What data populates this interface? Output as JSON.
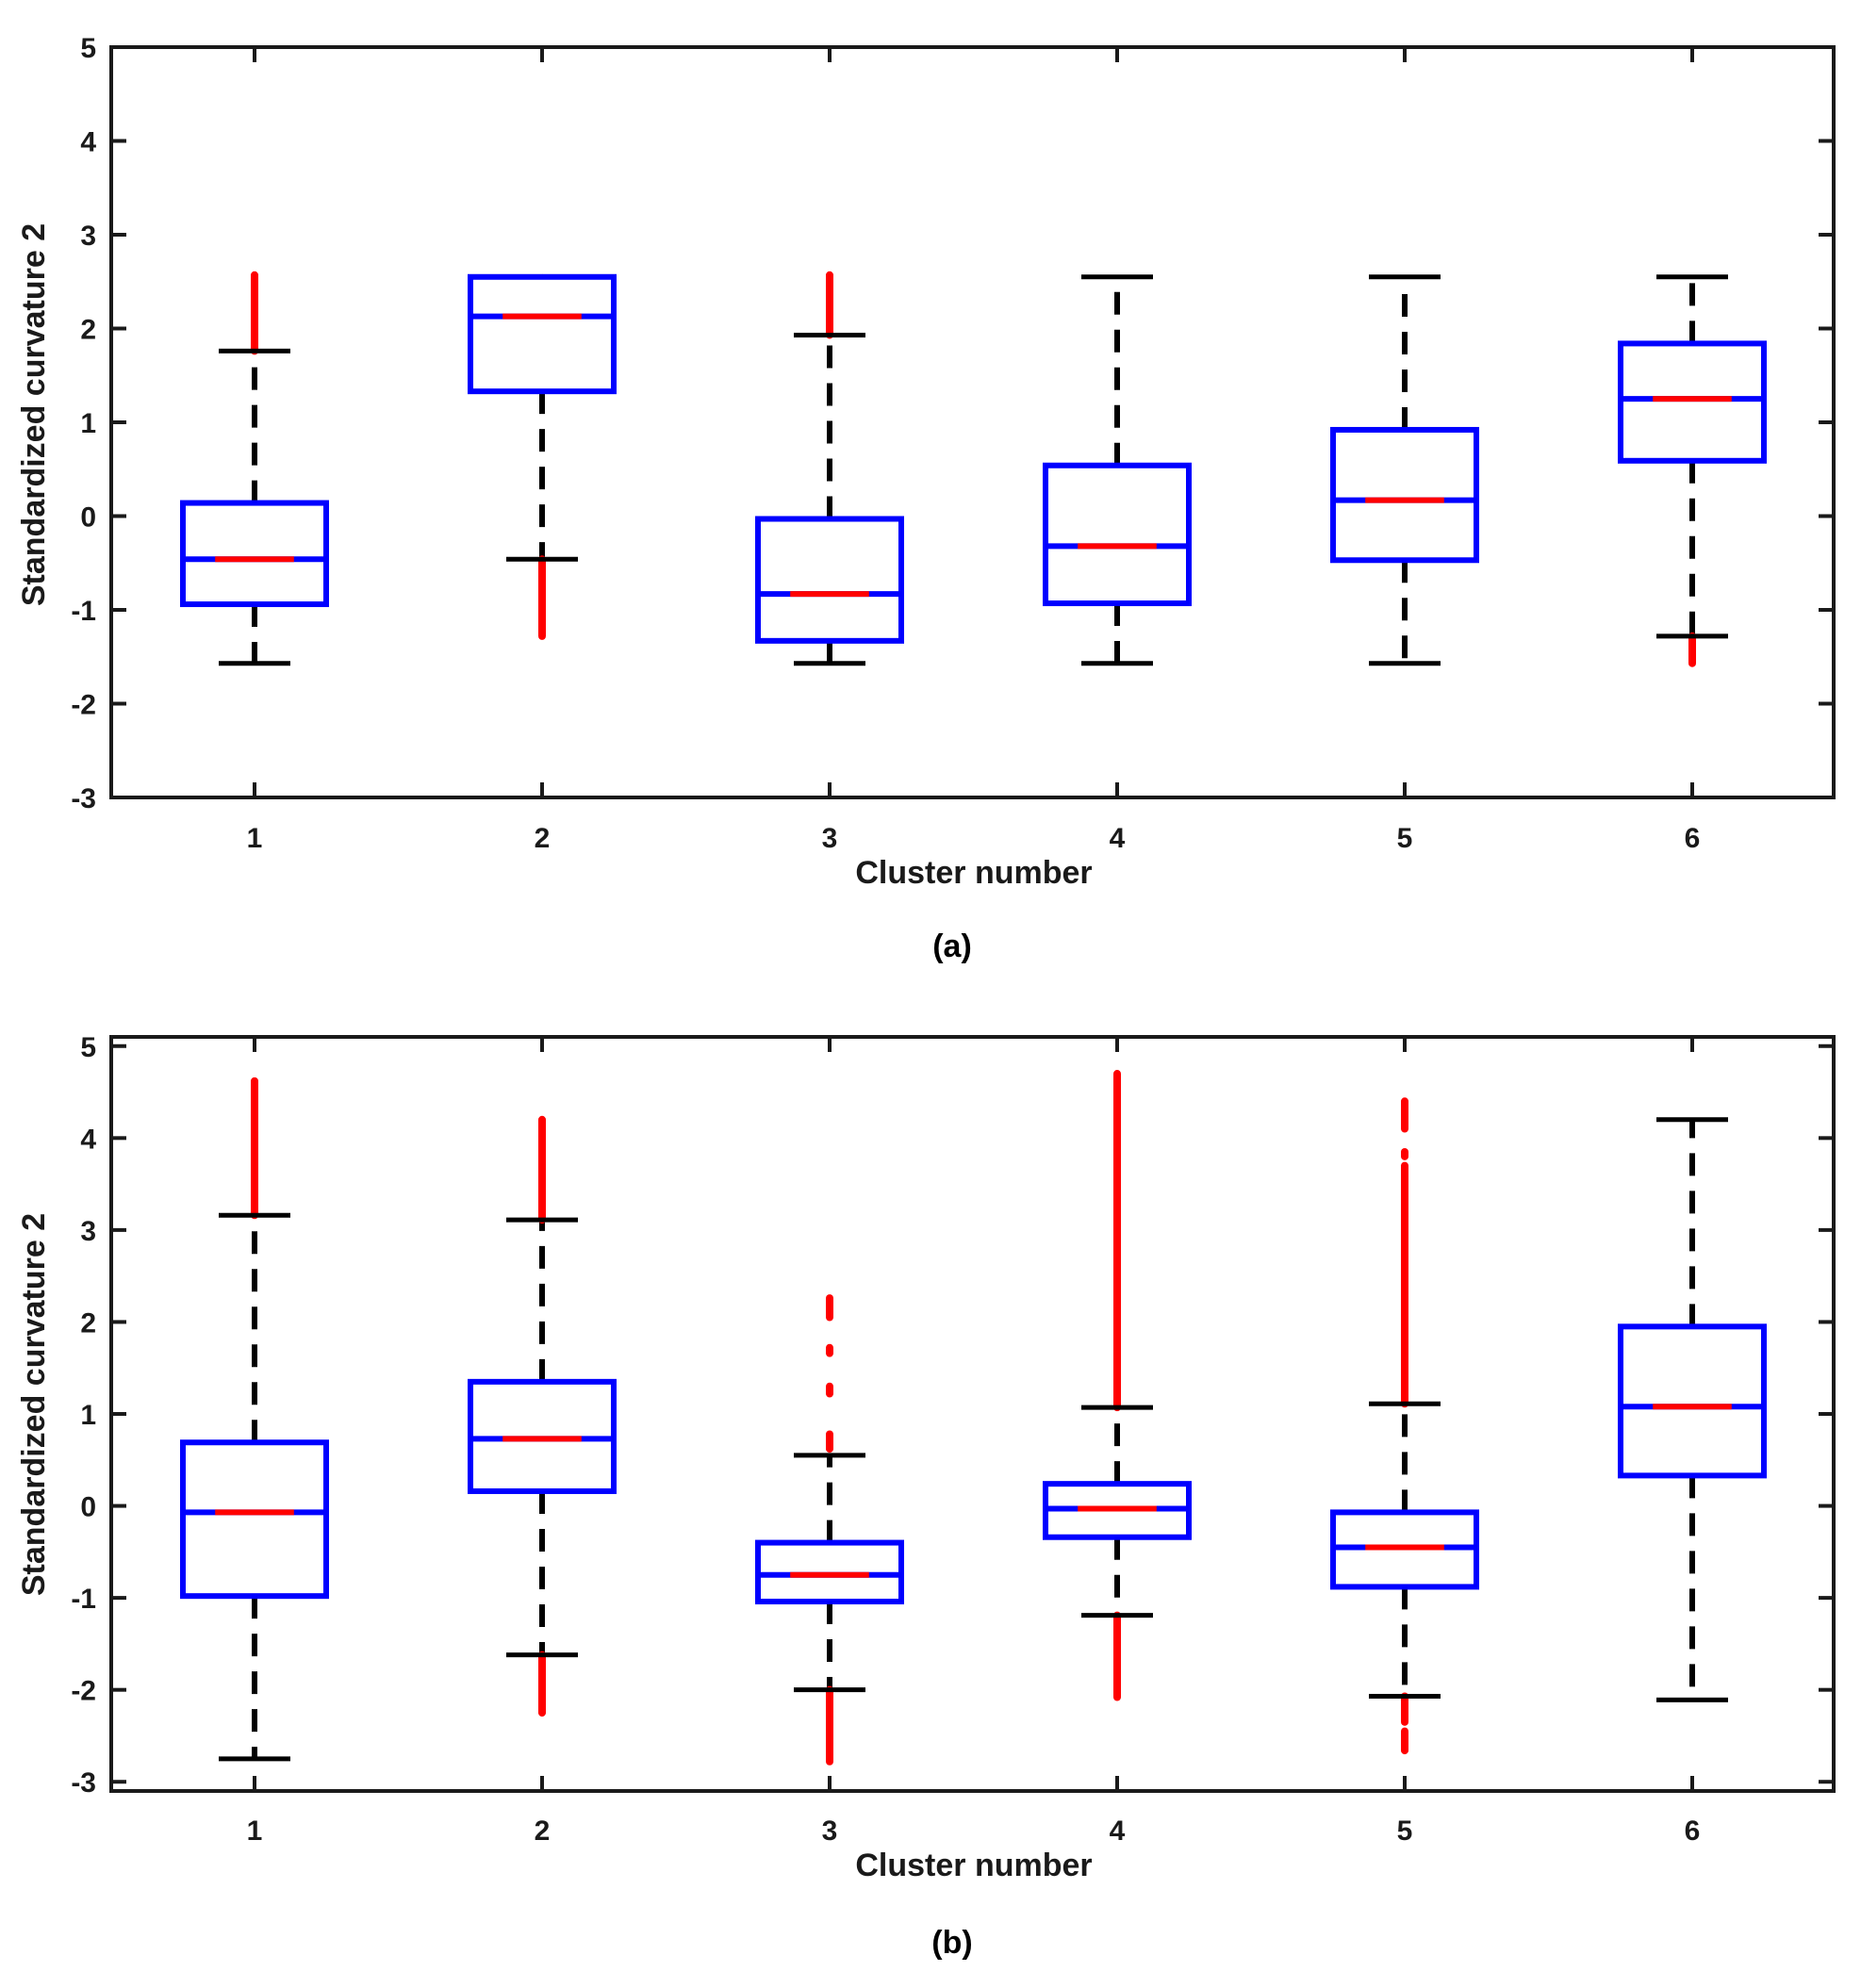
{
  "chart_data": [
    {
      "type": "boxplot",
      "panel_label": "(a)",
      "title": "",
      "xlabel": "Cluster number",
      "ylabel": "Standardized curvature 2",
      "ylim": [
        -3,
        5
      ],
      "yticks": [
        "-3",
        "-2",
        "-1",
        "0",
        "1",
        "2",
        "3",
        "4",
        "5"
      ],
      "categories": [
        "1",
        "2",
        "3",
        "4",
        "5",
        "6"
      ],
      "boxes": [
        {
          "cluster": "1",
          "whisker_low": -1.57,
          "q1": -0.94,
          "median": -0.46,
          "q3": 0.14,
          "whisker_high": 1.76,
          "outlier_ranges": [
            [
              1.76,
              2.57
            ]
          ]
        },
        {
          "cluster": "2",
          "whisker_low": -0.46,
          "q1": 1.33,
          "median": 2.13,
          "q3": 2.55,
          "whisker_high": 2.55,
          "outlier_ranges": [
            [
              -1.28,
              -0.46
            ]
          ]
        },
        {
          "cluster": "3",
          "whisker_low": -1.57,
          "q1": -1.33,
          "median": -0.83,
          "q3": -0.03,
          "whisker_high": 1.93,
          "outlier_ranges": [
            [
              1.93,
              2.57
            ]
          ]
        },
        {
          "cluster": "4",
          "whisker_low": -1.57,
          "q1": -0.93,
          "median": -0.32,
          "q3": 0.54,
          "whisker_high": 2.55,
          "outlier_ranges": []
        },
        {
          "cluster": "5",
          "whisker_low": -1.57,
          "q1": -0.47,
          "median": 0.17,
          "q3": 0.92,
          "whisker_high": 2.55,
          "outlier_ranges": []
        },
        {
          "cluster": "6",
          "whisker_low": -1.28,
          "q1": 0.59,
          "median": 1.25,
          "q3": 1.84,
          "whisker_high": 2.55,
          "outlier_ranges": [
            [
              -1.57,
              -1.28
            ]
          ]
        }
      ]
    },
    {
      "type": "boxplot",
      "panel_label": "(b)",
      "title": "",
      "xlabel": "Cluster number",
      "ylabel": "Standardized curvature 2",
      "ylim": [
        -3.1,
        5.1
      ],
      "yticks": [
        "-3",
        "-2",
        "-1",
        "0",
        "1",
        "2",
        "3",
        "4",
        "5"
      ],
      "categories": [
        "1",
        "2",
        "3",
        "4",
        "5",
        "6"
      ],
      "boxes": [
        {
          "cluster": "1",
          "whisker_low": -2.75,
          "q1": -0.98,
          "median": -0.07,
          "q3": 0.69,
          "whisker_high": 3.16,
          "outlier_ranges": [
            [
              3.16,
              4.62
            ]
          ]
        },
        {
          "cluster": "2",
          "whisker_low": -1.62,
          "q1": 0.16,
          "median": 0.73,
          "q3": 1.35,
          "whisker_high": 3.11,
          "outlier_ranges": [
            [
              3.11,
              4.2
            ],
            [
              -2.25,
              -1.62
            ]
          ]
        },
        {
          "cluster": "3",
          "whisker_low": -2.0,
          "q1": -1.04,
          "median": -0.75,
          "q3": -0.4,
          "whisker_high": 0.55,
          "outlier_ranges": [
            [
              0.62,
              0.78
            ],
            [
              1.22,
              1.3
            ],
            [
              1.66,
              1.72
            ],
            [
              2.05,
              2.26
            ],
            [
              -2.78,
              -2.0
            ]
          ]
        },
        {
          "cluster": "4",
          "whisker_low": -1.19,
          "q1": -0.34,
          "median": -0.03,
          "q3": 0.24,
          "whisker_high": 1.07,
          "outlier_ranges": [
            [
              1.07,
              4.7
            ],
            [
              -2.08,
              -1.19
            ]
          ]
        },
        {
          "cluster": "5",
          "whisker_low": -2.07,
          "q1": -0.88,
          "median": -0.45,
          "q3": -0.07,
          "whisker_high": 1.11,
          "outlier_ranges": [
            [
              1.11,
              3.7
            ],
            [
              3.8,
              3.85
            ],
            [
              4.1,
              4.4
            ],
            [
              -2.07,
              -2.35
            ],
            [
              -2.45,
              -2.66
            ]
          ]
        },
        {
          "cluster": "6",
          "whisker_low": -2.11,
          "q1": 0.33,
          "median": 1.08,
          "q3": 1.95,
          "whisker_high": 4.2,
          "outlier_ranges": []
        }
      ]
    }
  ],
  "colors": {
    "box": "#0000ff",
    "median": "#ff0000",
    "whisker": "#000000",
    "outlier": "#ff0000",
    "axis": "#1a1a1a"
  }
}
